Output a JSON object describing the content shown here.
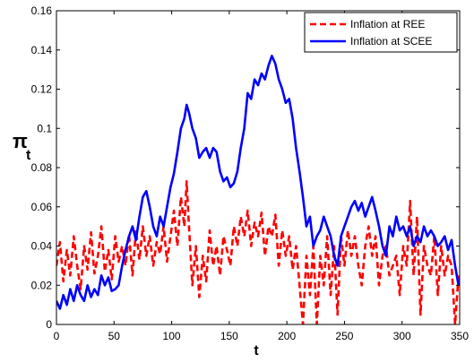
{
  "chart_data": {
    "type": "line",
    "title": "",
    "xlabel": "t",
    "ylabel_main": "π",
    "ylabel_sub": "t",
    "xlim": [
      0,
      350
    ],
    "ylim": [
      0,
      0.16
    ],
    "x_ticks": [
      0,
      50,
      100,
      150,
      200,
      250,
      300,
      350
    ],
    "y_ticks": [
      0,
      0.02,
      0.04,
      0.06,
      0.08,
      0.1,
      0.12,
      0.14,
      0.16
    ],
    "x_tick_labels": [
      "0",
      "50",
      "100",
      "150",
      "200",
      "250",
      "300",
      "350"
    ],
    "y_tick_labels": [
      "0",
      "0.02",
      "0.04",
      "0.06",
      "0.08",
      "0.1",
      "0.12",
      "0.14",
      "0.16"
    ],
    "grid": false,
    "legend_position": "top-right",
    "series": [
      {
        "name": "Inflation at REE",
        "color": "#ff0000",
        "style": "dashed",
        "x": [
          0,
          3,
          6,
          9,
          12,
          15,
          18,
          21,
          24,
          27,
          30,
          33,
          36,
          39,
          42,
          45,
          48,
          51,
          54,
          57,
          60,
          63,
          66,
          69,
          72,
          75,
          78,
          81,
          84,
          87,
          90,
          93,
          96,
          99,
          102,
          105,
          108,
          111,
          113,
          115,
          118,
          121,
          124,
          127,
          130,
          133,
          136,
          139,
          142,
          145,
          148,
          151,
          154,
          157,
          160,
          163,
          166,
          169,
          172,
          175,
          178,
          181,
          184,
          187,
          190,
          193,
          196,
          199,
          202,
          205,
          208,
          211,
          214,
          217,
          220,
          223,
          226,
          229,
          232,
          235,
          238,
          241,
          244,
          247,
          250,
          253,
          256,
          259,
          262,
          265,
          268,
          271,
          274,
          277,
          280,
          283,
          286,
          289,
          292,
          295,
          298,
          301,
          304,
          307,
          310,
          313,
          316,
          319,
          322,
          325,
          328,
          331,
          334,
          337,
          340,
          343,
          346,
          349
        ],
        "y": [
          0.03,
          0.042,
          0.022,
          0.038,
          0.025,
          0.045,
          0.03,
          0.018,
          0.04,
          0.028,
          0.047,
          0.026,
          0.035,
          0.05,
          0.027,
          0.038,
          0.023,
          0.045,
          0.032,
          0.04,
          0.03,
          0.046,
          0.025,
          0.048,
          0.033,
          0.05,
          0.035,
          0.045,
          0.03,
          0.042,
          0.036,
          0.05,
          0.032,
          0.045,
          0.058,
          0.04,
          0.065,
          0.05,
          0.073,
          0.05,
          0.02,
          0.04,
          0.014,
          0.035,
          0.022,
          0.048,
          0.03,
          0.04,
          0.025,
          0.045,
          0.038,
          0.03,
          0.05,
          0.04,
          0.055,
          0.045,
          0.058,
          0.04,
          0.052,
          0.045,
          0.057,
          0.035,
          0.05,
          0.045,
          0.056,
          0.03,
          0.048,
          0.035,
          0.045,
          0.028,
          0.04,
          0.02,
          0.0,
          0.035,
          0.015,
          0.04,
          0.0,
          0.035,
          0.02,
          0.045,
          0.015,
          0.04,
          0.005,
          0.045,
          0.03,
          0.048,
          0.035,
          0.045,
          0.03,
          0.02,
          0.04,
          0.05,
          0.035,
          0.045,
          0.02,
          0.035,
          0.04,
          0.025,
          0.03,
          0.035,
          0.015,
          0.04,
          0.03,
          0.063,
          0.025,
          0.055,
          0.005,
          0.04,
          0.03,
          0.025,
          0.045,
          0.015,
          0.04,
          0.025,
          0.035,
          0.03,
          0.0,
          0.025
        ]
      },
      {
        "name": "Inflation at SCEE",
        "color": "#0000ff",
        "style": "solid",
        "x": [
          0,
          3,
          6,
          9,
          12,
          15,
          18,
          21,
          24,
          27,
          30,
          33,
          36,
          39,
          42,
          45,
          48,
          51,
          54,
          57,
          60,
          63,
          66,
          69,
          72,
          75,
          78,
          81,
          84,
          87,
          90,
          93,
          96,
          99,
          102,
          105,
          108,
          111,
          113,
          115,
          118,
          121,
          124,
          127,
          130,
          133,
          136,
          139,
          142,
          145,
          148,
          151,
          154,
          157,
          160,
          163,
          166,
          169,
          172,
          175,
          178,
          181,
          184,
          187,
          190,
          193,
          196,
          199,
          202,
          205,
          208,
          211,
          214,
          217,
          220,
          223,
          226,
          229,
          232,
          235,
          238,
          241,
          244,
          247,
          250,
          253,
          256,
          259,
          262,
          265,
          268,
          271,
          274,
          277,
          280,
          283,
          286,
          289,
          292,
          295,
          298,
          301,
          304,
          307,
          310,
          313,
          316,
          319,
          322,
          325,
          328,
          331,
          334,
          337,
          340,
          343,
          346,
          349
        ],
        "y": [
          0.012,
          0.008,
          0.015,
          0.01,
          0.018,
          0.012,
          0.02,
          0.015,
          0.012,
          0.02,
          0.014,
          0.018,
          0.015,
          0.025,
          0.02,
          0.024,
          0.017,
          0.018,
          0.02,
          0.03,
          0.038,
          0.045,
          0.05,
          0.043,
          0.055,
          0.065,
          0.068,
          0.06,
          0.05,
          0.045,
          0.055,
          0.05,
          0.06,
          0.07,
          0.077,
          0.088,
          0.1,
          0.105,
          0.112,
          0.108,
          0.1,
          0.095,
          0.085,
          0.088,
          0.09,
          0.085,
          0.09,
          0.088,
          0.078,
          0.073,
          0.075,
          0.07,
          0.072,
          0.078,
          0.09,
          0.1,
          0.118,
          0.115,
          0.125,
          0.122,
          0.128,
          0.125,
          0.132,
          0.137,
          0.133,
          0.125,
          0.12,
          0.113,
          0.115,
          0.105,
          0.09,
          0.078,
          0.065,
          0.05,
          0.055,
          0.04,
          0.045,
          0.048,
          0.055,
          0.05,
          0.045,
          0.035,
          0.03,
          0.045,
          0.05,
          0.055,
          0.06,
          0.063,
          0.058,
          0.062,
          0.055,
          0.06,
          0.065,
          0.058,
          0.05,
          0.04,
          0.035,
          0.05,
          0.045,
          0.055,
          0.048,
          0.05,
          0.045,
          0.05,
          0.04,
          0.045,
          0.042,
          0.05,
          0.045,
          0.048,
          0.045,
          0.04,
          0.042,
          0.045,
          0.038,
          0.043,
          0.03,
          0.02
        ]
      }
    ]
  },
  "legend": {
    "ree_label": "Inflation at REE",
    "scee_label": "Inflation at SCEE"
  }
}
